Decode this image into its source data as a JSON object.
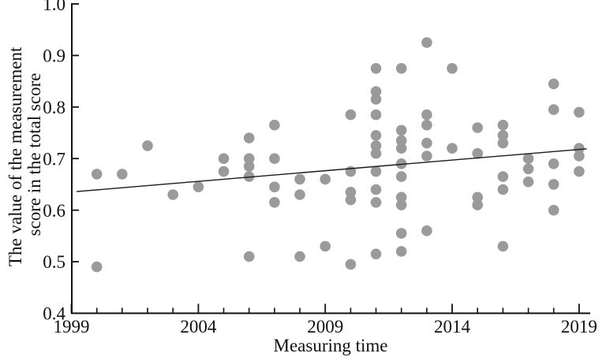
{
  "page": {
    "background": "#ffffff"
  },
  "chart_data": {
    "type": "scatter",
    "title": "",
    "xlabel": "Measuring time",
    "ylabel_lines": [
      "The value of the measurement",
      "score in the total score"
    ],
    "xlim": [
      1999,
      2019.5
    ],
    "ylim": [
      0.4,
      1.0
    ],
    "x_major_ticks": [
      1999,
      2004,
      2009,
      2014,
      2019
    ],
    "x_minor_ticks_start": 2000,
    "x_minor_ticks_end": 2019,
    "y_ticks": [
      1.0,
      0.9,
      0.8,
      0.7,
      0.6,
      0.5,
      0.4
    ],
    "y_tick_labels": [
      "1.0",
      "0.9",
      "0.8",
      "0.7",
      "0.6",
      "0.5",
      "0.4"
    ],
    "x_tick_labels": [
      "1999",
      "2004",
      "2009",
      "2014",
      "2019"
    ],
    "grid": false,
    "legend": "none",
    "point_color": "#9a9a9a",
    "axis_color": "#111111",
    "trend_line_color": "#1a1a1a",
    "trend_line": {
      "x1": 1999.2,
      "y1": 0.636,
      "x2": 2019.3,
      "y2": 0.719
    },
    "points": [
      [
        2000,
        0.67
      ],
      [
        2000,
        0.49
      ],
      [
        2001,
        0.67
      ],
      [
        2002,
        0.725
      ],
      [
        2003,
        0.63
      ],
      [
        2004,
        0.645
      ],
      [
        2005,
        0.7
      ],
      [
        2005,
        0.675
      ],
      [
        2006,
        0.74
      ],
      [
        2006,
        0.7
      ],
      [
        2006,
        0.685
      ],
      [
        2006,
        0.665
      ],
      [
        2006,
        0.51
      ],
      [
        2007,
        0.765
      ],
      [
        2007,
        0.7
      ],
      [
        2007,
        0.645
      ],
      [
        2007,
        0.615
      ],
      [
        2008,
        0.66
      ],
      [
        2008,
        0.63
      ],
      [
        2008,
        0.51
      ],
      [
        2009,
        0.66
      ],
      [
        2009,
        0.53
      ],
      [
        2010,
        0.785
      ],
      [
        2010,
        0.675
      ],
      [
        2010,
        0.635
      ],
      [
        2010,
        0.62
      ],
      [
        2010,
        0.495
      ],
      [
        2011,
        0.875
      ],
      [
        2011,
        0.83
      ],
      [
        2011,
        0.815
      ],
      [
        2011,
        0.785
      ],
      [
        2011,
        0.745
      ],
      [
        2011,
        0.725
      ],
      [
        2011,
        0.71
      ],
      [
        2011,
        0.675
      ],
      [
        2011,
        0.64
      ],
      [
        2011,
        0.615
      ],
      [
        2011,
        0.515
      ],
      [
        2012,
        0.875
      ],
      [
        2012,
        0.755
      ],
      [
        2012,
        0.735
      ],
      [
        2012,
        0.72
      ],
      [
        2012,
        0.69
      ],
      [
        2012,
        0.665
      ],
      [
        2012,
        0.625
      ],
      [
        2012,
        0.61
      ],
      [
        2012,
        0.555
      ],
      [
        2012,
        0.52
      ],
      [
        2013,
        0.925
      ],
      [
        2013,
        0.785
      ],
      [
        2013,
        0.765
      ],
      [
        2013,
        0.73
      ],
      [
        2013,
        0.705
      ],
      [
        2013,
        0.56
      ],
      [
        2014,
        0.875
      ],
      [
        2014,
        0.72
      ],
      [
        2015,
        0.76
      ],
      [
        2015,
        0.71
      ],
      [
        2015,
        0.625
      ],
      [
        2015,
        0.61
      ],
      [
        2016,
        0.765
      ],
      [
        2016,
        0.745
      ],
      [
        2016,
        0.73
      ],
      [
        2016,
        0.665
      ],
      [
        2016,
        0.64
      ],
      [
        2016,
        0.53
      ],
      [
        2017,
        0.7
      ],
      [
        2017,
        0.68
      ],
      [
        2017,
        0.655
      ],
      [
        2018,
        0.845
      ],
      [
        2018,
        0.795
      ],
      [
        2018,
        0.69
      ],
      [
        2018,
        0.65
      ],
      [
        2018,
        0.6
      ],
      [
        2019,
        0.79
      ],
      [
        2019,
        0.72
      ],
      [
        2019,
        0.705
      ],
      [
        2019,
        0.675
      ]
    ]
  }
}
